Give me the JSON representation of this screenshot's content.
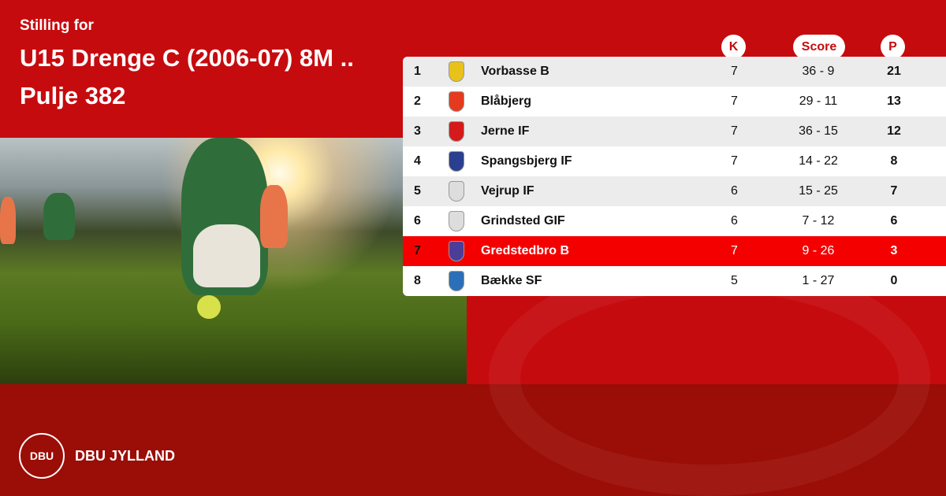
{
  "header": {
    "subtitle": "Stilling for",
    "title_line1": "U15 Drenge C (2006-07) 8M ..",
    "title_line2": "Pulje 382"
  },
  "table": {
    "columns": {
      "k": "K",
      "score": "Score",
      "p": "P"
    },
    "highlight_color": "#f50000",
    "rows": [
      {
        "pos": "1",
        "team": "Vorbasse B",
        "k": "7",
        "score": "36 - 9",
        "p": "21",
        "logo_color": "#e8c21a"
      },
      {
        "pos": "2",
        "team": "Blåbjerg",
        "k": "7",
        "score": "29 - 11",
        "p": "13",
        "logo_color": "#e53a1e"
      },
      {
        "pos": "3",
        "team": "Jerne IF",
        "k": "7",
        "score": "36 - 15",
        "p": "12",
        "logo_color": "#d41a1a"
      },
      {
        "pos": "4",
        "team": "Spangsbjerg IF",
        "k": "7",
        "score": "14 - 22",
        "p": "8",
        "logo_color": "#2a3f8f"
      },
      {
        "pos": "5",
        "team": "Vejrup IF",
        "k": "6",
        "score": "15 - 25",
        "p": "7",
        "logo_color": "#dddddd"
      },
      {
        "pos": "6",
        "team": "Grindsted GIF",
        "k": "6",
        "score": "7 - 12",
        "p": "6",
        "logo_color": "#dddddd"
      },
      {
        "pos": "7",
        "team": "Gredstedbro B",
        "k": "7",
        "score": "9 - 26",
        "p": "3",
        "logo_color": "#4b3d9a",
        "highlighted": true
      },
      {
        "pos": "8",
        "team": "Bække SF",
        "k": "5",
        "score": "1 - 27",
        "p": "0",
        "logo_color": "#2c6fb8"
      }
    ]
  },
  "footer": {
    "logo_text": "DBU",
    "brand": "DBU JYLLAND"
  },
  "colors": {
    "primary": "#c60b0e",
    "footer": "#9b0d07"
  }
}
